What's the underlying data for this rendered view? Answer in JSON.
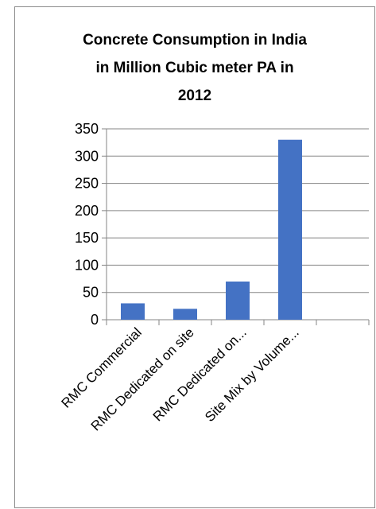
{
  "chart_data": {
    "type": "bar",
    "title_lines": [
      "Concrete Consumption in India",
      "in Million Cubic meter PA in",
      "2012"
    ],
    "categories": [
      "RMC Commercial",
      "RMC Dedicated on site",
      "RMC Dedicated on...",
      "Site Mix by Volume...",
      ""
    ],
    "values": [
      30,
      20,
      70,
      330,
      null
    ],
    "y_ticks": [
      0,
      50,
      100,
      150,
      200,
      250,
      300,
      350
    ],
    "ylim": [
      0,
      350
    ],
    "grid": true,
    "legend": "none",
    "colors": {
      "bar": "#4472c4",
      "grid": "#868686",
      "axis": "#868686",
      "text": "#000000",
      "frame": "#8c8c8c"
    }
  }
}
